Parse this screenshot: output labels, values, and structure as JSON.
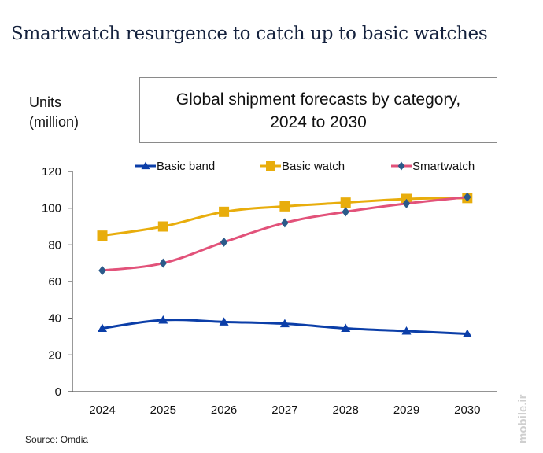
{
  "headline": "Smartwatch resurgence to catch up to basic watches",
  "source": "Source: Omdia",
  "watermark": "mobile.ir",
  "chart_data": {
    "type": "line",
    "title": "Global shipment forecasts by category, 2024 to 2030",
    "title_lines": [
      "Global shipment forecasts by category,",
      "2024 to 2030"
    ],
    "xlabel": "",
    "ylabel": "Units (million)",
    "ylabel_lines": [
      "Units",
      "(million)"
    ],
    "x": [
      "2024",
      "2025",
      "2026",
      "2027",
      "2028",
      "2029",
      "2030"
    ],
    "ylim": [
      0,
      120
    ],
    "yticks": [
      0,
      20,
      40,
      60,
      80,
      100,
      120
    ],
    "grid": false,
    "legend": "top",
    "series": [
      {
        "name": "Basic band",
        "color": "#0b3ea8",
        "marker": "triangle",
        "values": [
          34.5,
          39,
          38,
          37,
          34.5,
          33,
          31.5
        ]
      },
      {
        "name": "Basic watch",
        "color": "#e8ad0c",
        "marker": "square",
        "values": [
          85,
          90,
          98,
          101,
          103,
          105,
          105.5
        ]
      },
      {
        "name": "Smartwatch",
        "color": "#e2527a",
        "marker": "diamond",
        "marker_color": "#2b5a8a",
        "values": [
          66,
          70,
          81.5,
          92,
          98,
          102.5,
          106
        ]
      }
    ]
  }
}
